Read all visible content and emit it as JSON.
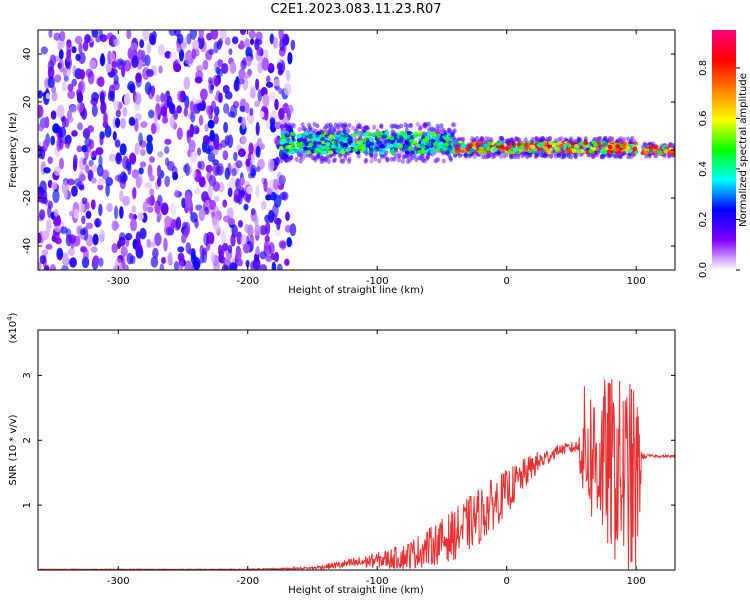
{
  "title": "C2E1.2023.083.11.23.R07",
  "chart_data": [
    {
      "type": "heatmap",
      "xlabel": "Height of straight line (km)",
      "ylabel": "Frequency (Hz)",
      "xlim": [
        -362,
        130
      ],
      "ylim": [
        -50,
        50
      ],
      "xticks": [
        -300,
        -200,
        -100,
        0,
        100
      ],
      "yticks": [
        -40,
        -20,
        0,
        20,
        40
      ],
      "colorbar": {
        "label": "Normalized spectral amplitude",
        "range": [
          0.0,
          0.95
        ],
        "ticks": [
          0.0,
          0.2,
          0.4,
          0.6,
          0.8
        ],
        "colors": [
          "#ffffff",
          "#8000ff",
          "#0000ff",
          "#00ffff",
          "#00ff00",
          "#ffff00",
          "#ff8000",
          "#ff0000",
          "#ff0080"
        ]
      },
      "regions": [
        {
          "x": [
            -362,
            -165
          ],
          "freq": [
            -50,
            50
          ],
          "amplitude": [
            0.02,
            0.25
          ]
        },
        {
          "x": [
            -175,
            -40
          ],
          "freq_center": 3,
          "freq_halfwidth": 6,
          "amplitude": [
            0.2,
            0.55
          ]
        },
        {
          "x": [
            -40,
            100
          ],
          "freq_center": 1,
          "freq_halfwidth": 3,
          "amplitude": [
            0.3,
            0.9
          ]
        },
        {
          "x": [
            105,
            130
          ],
          "freq_center": 0,
          "freq_halfwidth": 2,
          "amplitude": [
            0.4,
            0.9
          ]
        }
      ]
    },
    {
      "type": "line",
      "xlabel": "Height of straight line (km)",
      "ylabel": "SNR (10 * v/v)",
      "scale_label": "(x10",
      "scale_exponent": "4",
      "scale_close": ")",
      "xlim": [
        -362,
        130
      ],
      "ylim": [
        0,
        3.7
      ],
      "xticks": [
        -300,
        -200,
        -100,
        0,
        100
      ],
      "yticks": [
        1,
        2,
        3
      ],
      "color": "#e83030",
      "envelope": {
        "x": [
          -362,
          -200,
          -150,
          -120,
          -100,
          -80,
          -60,
          -40,
          -20,
          0,
          20,
          40,
          55,
          60,
          80,
          100,
          105,
          110,
          130
        ],
        "y": [
          0.01,
          0.01,
          0.03,
          0.1,
          0.15,
          0.2,
          0.35,
          0.55,
          0.85,
          1.2,
          1.6,
          1.85,
          1.9,
          1.85,
          1.6,
          1.3,
          1.75,
          1.76,
          1.75
        ],
        "amp": [
          0.005,
          0.005,
          0.02,
          0.08,
          0.12,
          0.2,
          0.3,
          0.4,
          0.45,
          0.35,
          0.2,
          0.08,
          0.1,
          1.0,
          1.4,
          1.6,
          0.05,
          0.02,
          0.02
        ]
      }
    }
  ]
}
